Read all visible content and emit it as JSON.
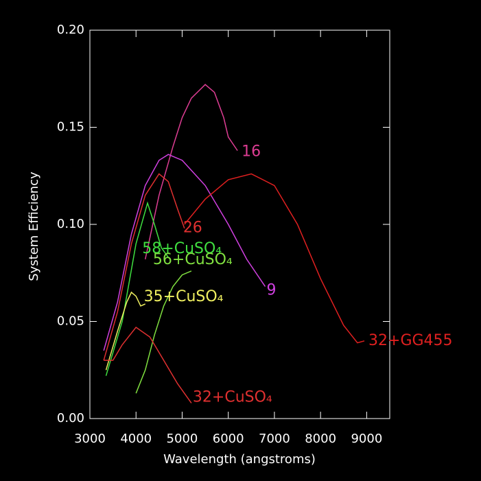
{
  "chart_data": {
    "type": "line",
    "xlabel": "Wavelength (angstroms)",
    "ylabel": "System Efficiency",
    "xlim": [
      3000,
      9500
    ],
    "ylim": [
      0,
      0.2
    ],
    "xticks": [
      3000,
      4000,
      5000,
      6000,
      7000,
      8000,
      9000
    ],
    "yticks": [
      {
        "value": 0,
        "label": "0.00"
      },
      0.05,
      {
        "value": 0.1,
        "label": "0.10"
      },
      0.15,
      {
        "value": 0.2,
        "label": "0.20"
      }
    ],
    "series": [
      {
        "name": "16",
        "color": "#dd3d93",
        "x": [
          4200,
          4500,
          4800,
          5000,
          5200,
          5500,
          5700,
          5900,
          6000,
          6200
        ],
        "values": [
          0.082,
          0.115,
          0.14,
          0.155,
          0.165,
          0.172,
          0.168,
          0.155,
          0.145,
          0.138
        ]
      },
      {
        "name": "9",
        "color": "#d040e0",
        "x": [
          3300,
          3600,
          3900,
          4200,
          4500,
          4700,
          5000,
          5500,
          6000,
          6400,
          6800
        ],
        "values": [
          0.035,
          0.06,
          0.095,
          0.12,
          0.133,
          0.136,
          0.133,
          0.12,
          0.1,
          0.082,
          0.068
        ]
      },
      {
        "name": "26",
        "color": "#e03030",
        "x": [
          3300,
          3600,
          3900,
          4200,
          4500,
          4700,
          4900,
          5050
        ],
        "values": [
          0.03,
          0.055,
          0.09,
          0.115,
          0.126,
          0.122,
          0.108,
          0.098
        ]
      },
      {
        "name": "32+GG455",
        "color": "#e02020",
        "x": [
          5050,
          5500,
          6000,
          6500,
          7000,
          7500,
          8000,
          8500,
          8800,
          8950
        ],
        "values": [
          0.1,
          0.113,
          0.123,
          0.126,
          0.12,
          0.1,
          0.072,
          0.048,
          0.039,
          0.04
        ]
      },
      {
        "name": "58+CuSO₄",
        "color": "#40e040",
        "x": [
          3350,
          3700,
          4000,
          4250,
          4400,
          4550,
          4700
        ],
        "values": [
          0.022,
          0.05,
          0.09,
          0.111,
          0.1,
          0.088,
          0.083
        ]
      },
      {
        "name": "56+CuSO₄",
        "color": "#80e040",
        "x": [
          4000,
          4200,
          4400,
          4600,
          4800,
          5000,
          5200
        ],
        "values": [
          0.013,
          0.025,
          0.043,
          0.058,
          0.068,
          0.074,
          0.076
        ]
      },
      {
        "name": "35+CuSO₄",
        "color": "#f0f060",
        "x": [
          3350,
          3600,
          3800,
          3900,
          4000,
          4100,
          4200
        ],
        "values": [
          0.025,
          0.045,
          0.06,
          0.065,
          0.063,
          0.058,
          0.059
        ]
      },
      {
        "name": "32+CuSO₄",
        "color": "#e03030",
        "x": [
          3300,
          3500,
          3700,
          4000,
          4300,
          4600,
          4900,
          5200
        ],
        "values": [
          0.03,
          0.03,
          0.038,
          0.047,
          0.042,
          0.03,
          0.018,
          0.008
        ]
      }
    ]
  }
}
